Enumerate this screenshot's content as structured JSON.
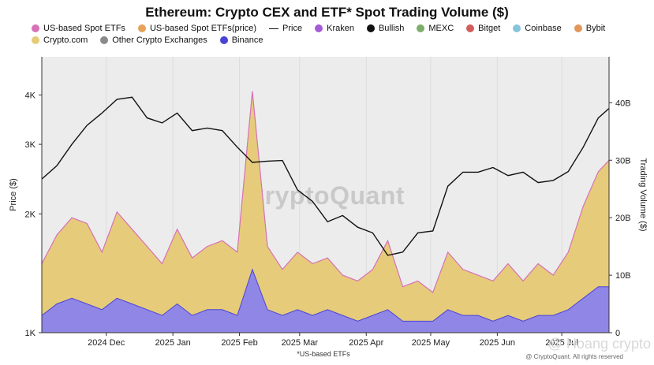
{
  "chart_data": {
    "type": "area",
    "title": "Ethereum: Crypto CEX and ETF* Spot Trading Volume ($)",
    "legend_placement": "top",
    "left_axis": {
      "label": "Price ($)",
      "ticks": [
        "1K",
        "2K",
        "3K",
        "4K"
      ],
      "scale": "log",
      "range": [
        1000,
        5000
      ]
    },
    "right_axis": {
      "label": "Trading Volume ($)",
      "ticks": [
        "0",
        "10B",
        "20B",
        "30B",
        "40B"
      ],
      "range": [
        0,
        48
      ]
    },
    "x_ticks": [
      "2024 Dec",
      "2025 Jan",
      "2025 Feb",
      "2025 Mar",
      "2025 Apr",
      "2025 May",
      "2025 Jun",
      "2025 Jul"
    ],
    "x_range": [
      "2024-11-01",
      "2025-07-23"
    ],
    "footnote": "*US-based ETFs",
    "watermark": "CryptoQuant",
    "credit": "@ CryptoQuant. All rights reserved",
    "overlay_text": "@ Hoang crypto",
    "legend": [
      {
        "name": "US-based Spot ETFs",
        "color": "#d872b8"
      },
      {
        "name": "US-based Spot ETFs(price)",
        "color": "#e8a25a"
      },
      {
        "name": "Price",
        "color": "#111111",
        "kind": "line"
      },
      {
        "name": "Kraken",
        "color": "#a45bd6"
      },
      {
        "name": "Bullish",
        "color": "#111111"
      },
      {
        "name": "MEXC",
        "color": "#7dad6b"
      },
      {
        "name": "Bitget",
        "color": "#d35d5d"
      },
      {
        "name": "Coinbase",
        "color": "#86c4dc"
      },
      {
        "name": "Bybit",
        "color": "#e3965a"
      },
      {
        "name": "Crypto.com",
        "color": "#e6cc7a"
      },
      {
        "name": "Other Crypto Exchanges",
        "color": "#8a8a8a"
      },
      {
        "name": "Binance",
        "color": "#4a44d6"
      }
    ],
    "price_series": {
      "name": "Price",
      "x": [
        "2024-11-01",
        "2024-11-08",
        "2024-11-15",
        "2024-11-22",
        "2024-11-29",
        "2024-12-06",
        "2024-12-13",
        "2024-12-20",
        "2024-12-27",
        "2025-01-03",
        "2025-01-10",
        "2025-01-17",
        "2025-01-24",
        "2025-01-31",
        "2025-02-07",
        "2025-02-14",
        "2025-02-21",
        "2025-02-28",
        "2025-03-07",
        "2025-03-14",
        "2025-03-21",
        "2025-03-28",
        "2025-04-04",
        "2025-04-11",
        "2025-04-18",
        "2025-04-25",
        "2025-05-02",
        "2025-05-09",
        "2025-05-16",
        "2025-05-23",
        "2025-05-30",
        "2025-06-06",
        "2025-06-13",
        "2025-06-20",
        "2025-06-27",
        "2025-07-04",
        "2025-07-11",
        "2025-07-18",
        "2025-07-23"
      ],
      "values": [
        2450,
        2650,
        3000,
        3350,
        3600,
        3900,
        3950,
        3500,
        3400,
        3600,
        3250,
        3300,
        3250,
        2950,
        2700,
        2720,
        2730,
        2300,
        2150,
        1910,
        1980,
        1850,
        1790,
        1570,
        1600,
        1790,
        1810,
        2350,
        2550,
        2550,
        2620,
        2500,
        2550,
        2400,
        2430,
        2560,
        2950,
        3500,
        3700
      ]
    },
    "volume_total": {
      "x": [
        "2024-11-01",
        "2024-11-08",
        "2024-11-15",
        "2024-11-22",
        "2024-11-29",
        "2024-12-06",
        "2024-12-13",
        "2024-12-20",
        "2024-12-27",
        "2025-01-03",
        "2025-01-10",
        "2025-01-17",
        "2025-01-24",
        "2025-01-31",
        "2025-02-07",
        "2025-02-14",
        "2025-02-21",
        "2025-02-28",
        "2025-03-07",
        "2025-03-14",
        "2025-03-21",
        "2025-03-28",
        "2025-04-04",
        "2025-04-11",
        "2025-04-18",
        "2025-04-25",
        "2025-05-02",
        "2025-05-09",
        "2025-05-16",
        "2025-05-23",
        "2025-05-30",
        "2025-06-06",
        "2025-06-13",
        "2025-06-20",
        "2025-06-27",
        "2025-07-04",
        "2025-07-11",
        "2025-07-18",
        "2025-07-23"
      ],
      "values": [
        12,
        17,
        20,
        19,
        14,
        21,
        18,
        15,
        12,
        18,
        13,
        15,
        16,
        14,
        42,
        15,
        11,
        14,
        12,
        13,
        10,
        9,
        11,
        16,
        8,
        9,
        7,
        14,
        11,
        10,
        9,
        12,
        9,
        12,
        10,
        14,
        22,
        28,
        30
      ]
    },
    "volume_binance": {
      "x": [
        "2024-11-01",
        "2024-11-08",
        "2024-11-15",
        "2024-11-22",
        "2024-11-29",
        "2024-12-06",
        "2024-12-13",
        "2024-12-20",
        "2024-12-27",
        "2025-01-03",
        "2025-01-10",
        "2025-01-17",
        "2025-01-24",
        "2025-01-31",
        "2025-02-07",
        "2025-02-14",
        "2025-02-21",
        "2025-02-28",
        "2025-03-07",
        "2025-03-14",
        "2025-03-21",
        "2025-03-28",
        "2025-04-04",
        "2025-04-11",
        "2025-04-18",
        "2025-04-25",
        "2025-05-02",
        "2025-05-09",
        "2025-05-16",
        "2025-05-23",
        "2025-05-30",
        "2025-06-06",
        "2025-06-13",
        "2025-06-20",
        "2025-06-27",
        "2025-07-04",
        "2025-07-11",
        "2025-07-18",
        "2025-07-23"
      ],
      "values": [
        3,
        5,
        6,
        5,
        4,
        6,
        5,
        4,
        3,
        5,
        3,
        4,
        4,
        3,
        11,
        4,
        3,
        4,
        3,
        4,
        3,
        2,
        3,
        4,
        2,
        2,
        2,
        4,
        3,
        3,
        2,
        3,
        2,
        3,
        3,
        4,
        6,
        8,
        8
      ]
    }
  }
}
